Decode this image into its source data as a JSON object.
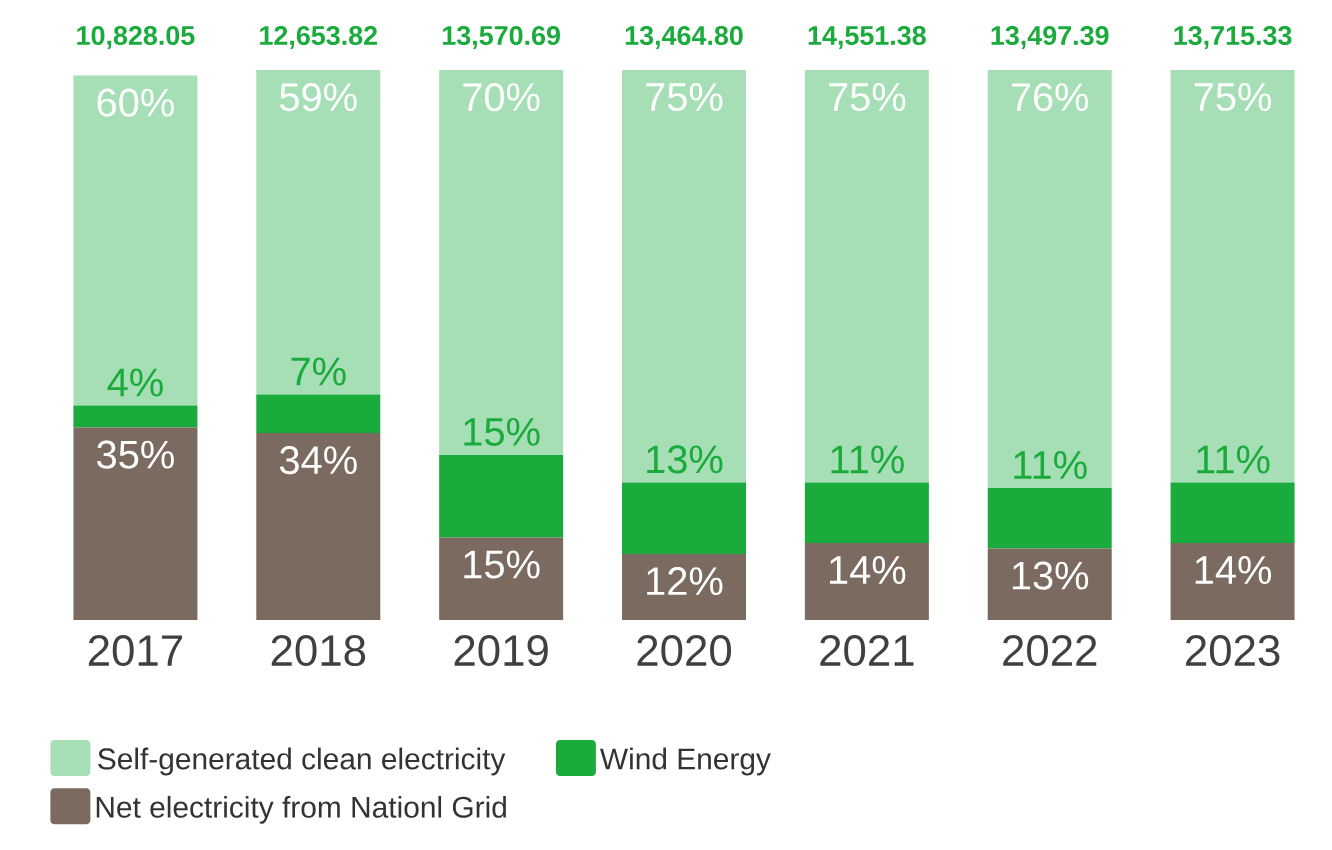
{
  "chart_data": {
    "type": "bar",
    "stacked": true,
    "categories": [
      "2017",
      "2018",
      "2019",
      "2020",
      "2021",
      "2022",
      "2023"
    ],
    "series": [
      {
        "name": "Net electricity from Nationl Grid",
        "color": "#7b6a5f",
        "values": [
          35,
          34,
          15,
          12,
          14,
          13,
          14
        ],
        "value_labels": [
          "35%",
          "34%",
          "15%",
          "12%",
          "14%",
          "13%",
          "14%"
        ]
      },
      {
        "name": "Wind Energy",
        "color": "#1aab3c",
        "values": [
          4,
          7,
          15,
          13,
          11,
          11,
          11
        ],
        "value_labels": [
          "4%",
          "7%",
          "15%",
          "13%",
          "11%",
          "11%",
          "11%"
        ]
      },
      {
        "name": "Self-generated clean electricity",
        "color": "#a6dfb6",
        "values": [
          60,
          59,
          70,
          75,
          75,
          76,
          75
        ],
        "value_labels": [
          "60%",
          "59%",
          "70%",
          "75%",
          "75%",
          "76%",
          "75%"
        ]
      }
    ],
    "annotations": [
      "10,828.05",
      "12,653.82",
      "13,570.69",
      "13,464.80",
      "14,551.38",
      "13,497.39",
      "13,715.33"
    ],
    "legend": "bottom"
  }
}
